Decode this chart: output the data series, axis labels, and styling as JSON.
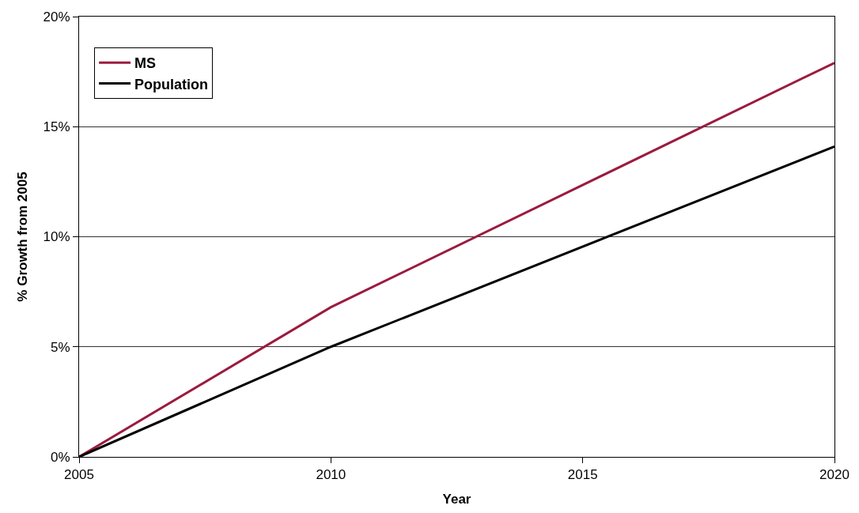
{
  "chart_data": {
    "type": "line",
    "xlabel": "Year",
    "ylabel": "% Growth from 2005",
    "x": [
      2005,
      2010,
      2020
    ],
    "series": [
      {
        "name": "MS",
        "color": "#9b1b3f",
        "values": [
          0,
          6.8,
          17.9
        ]
      },
      {
        "name": "Population",
        "color": "#000000",
        "values": [
          0,
          5.0,
          14.1
        ]
      }
    ],
    "xlim": [
      2005,
      2020
    ],
    "xticks": [
      2005,
      2010,
      2015,
      2020
    ],
    "ylim": [
      0,
      20
    ],
    "yticks": [
      {
        "value": 0,
        "label": "0%"
      },
      {
        "value": 5,
        "label": "5%"
      },
      {
        "value": 10,
        "label": "10%"
      },
      {
        "value": 15,
        "label": "15%"
      },
      {
        "value": 20,
        "label": "20%"
      }
    ],
    "grid": "y",
    "legend": "top left",
    "marker": "none",
    "line_style": "solid"
  }
}
